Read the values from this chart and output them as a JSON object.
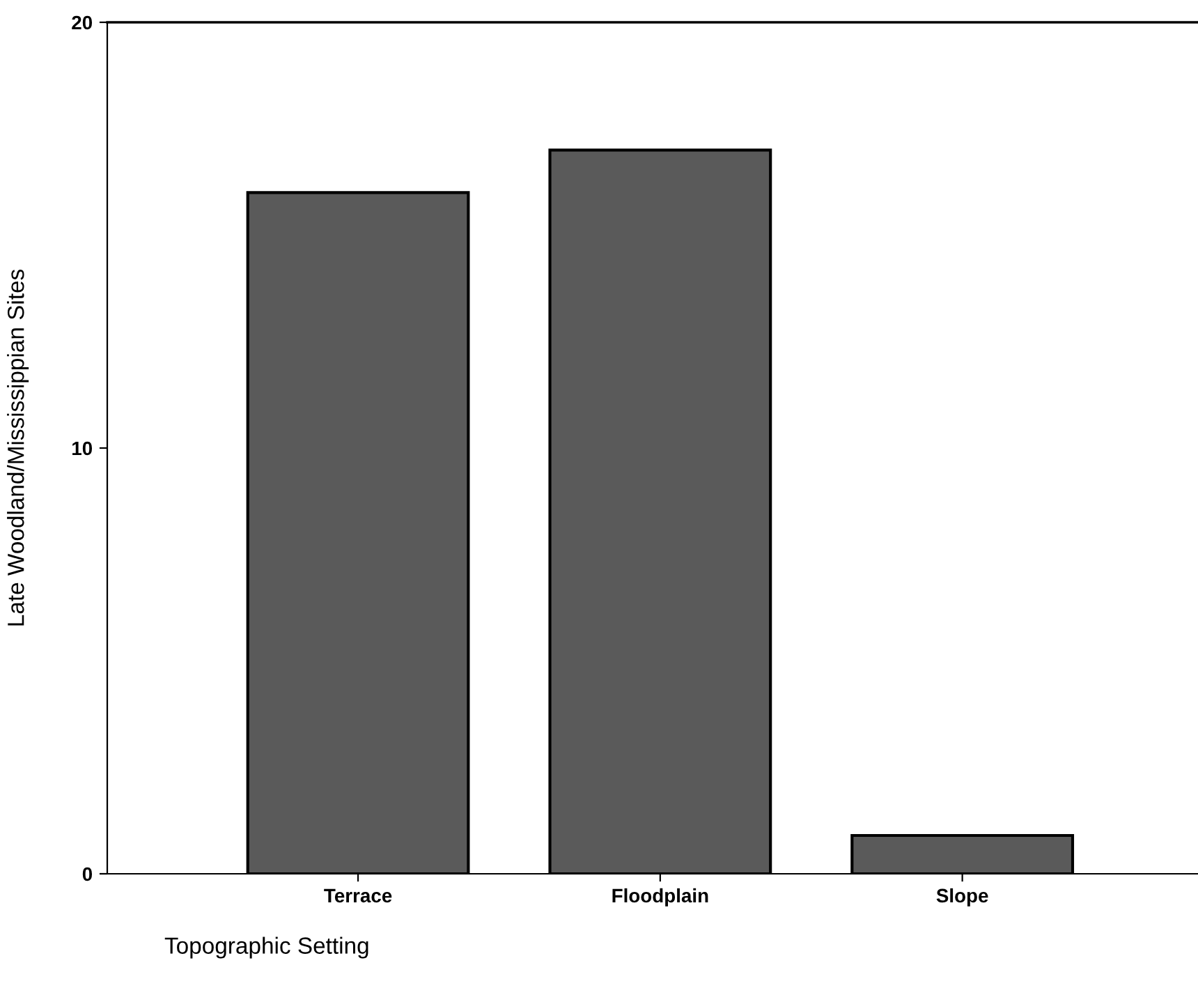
{
  "chart_data": {
    "type": "bar",
    "xlabel": "Topographic Setting",
    "ylabel": "Late Woodland/Mississippian Sites",
    "categories": [
      "Terrace",
      "Floodplain",
      "Slope"
    ],
    "values": [
      16,
      17,
      0.9
    ],
    "color": "#5a5a5a",
    "ylim": [
      0,
      20
    ],
    "yticks": [
      0,
      10,
      20
    ],
    "grid": false,
    "legend": false
  }
}
